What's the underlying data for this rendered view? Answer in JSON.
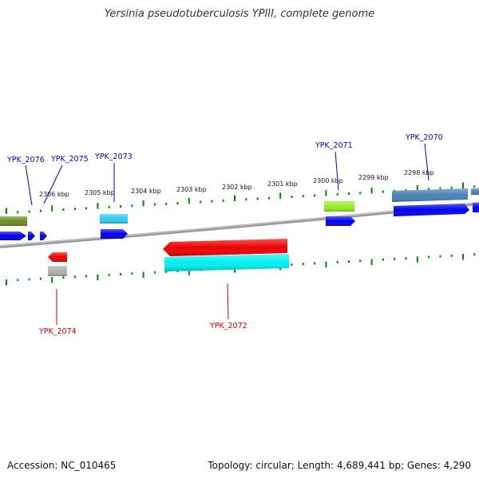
{
  "title": "Yersinia pseudotuberculosis YPIII, complete genome",
  "footer": {
    "accession": "Accession: NC_010465",
    "summary": "Topology: circular; Length: 4,689,441 bp; Genes: 4,290"
  },
  "colors": {
    "forward_label": "#0000cc",
    "reverse_label": "#cc0000",
    "tick": "#008800",
    "backbone": "#808080"
  },
  "ticks": [
    {
      "label": "2306 kbp"
    },
    {
      "label": "2305 kbp"
    },
    {
      "label": "2304 kbp"
    },
    {
      "label": "2303 kbp"
    },
    {
      "label": "2302 kbp"
    },
    {
      "label": "2301 kbp"
    },
    {
      "label": "2300 kbp"
    },
    {
      "label": "2299 kbp"
    },
    {
      "label": "2298 kbp"
    }
  ],
  "gene_labels": [
    {
      "name": "YPK_2076",
      "strand": "forward"
    },
    {
      "name": "YPK_2075",
      "strand": "forward"
    },
    {
      "name": "YPK_2073",
      "strand": "forward"
    },
    {
      "name": "YPK_2071",
      "strand": "forward"
    },
    {
      "name": "YPK_2070",
      "strand": "forward"
    },
    {
      "name": "YPK_2074",
      "strand": "reverse"
    },
    {
      "name": "YPK_2072",
      "strand": "reverse"
    }
  ],
  "features": [
    {
      "kind": "cog",
      "color": "#6b8e23",
      "strand": "forward"
    },
    {
      "kind": "cds",
      "color": "#0000ee",
      "strand": "forward"
    },
    {
      "kind": "cds",
      "color": "#0000ee",
      "strand": "forward"
    },
    {
      "kind": "cds",
      "color": "#0000ee",
      "strand": "forward"
    },
    {
      "kind": "cog",
      "color": "#33ccee",
      "strand": "forward"
    },
    {
      "kind": "cds",
      "color": "#0000ee",
      "strand": "forward"
    },
    {
      "kind": "cog",
      "color": "#99ee22",
      "strand": "forward"
    },
    {
      "kind": "cds",
      "color": "#0000ee",
      "strand": "forward"
    },
    {
      "kind": "cog",
      "color": "#4682b4",
      "strand": "forward"
    },
    {
      "kind": "cds",
      "color": "#0000ee",
      "strand": "forward"
    },
    {
      "kind": "cog",
      "color": "#4682b4",
      "strand": "forward"
    },
    {
      "kind": "cds",
      "color": "#0000ee",
      "strand": "forward"
    },
    {
      "kind": "cds",
      "color": "#ee0000",
      "strand": "reverse"
    },
    {
      "kind": "cog",
      "color": "#b0b0b0",
      "strand": "reverse"
    },
    {
      "kind": "cds",
      "color": "#ee0000",
      "strand": "reverse"
    },
    {
      "kind": "cog",
      "color": "#00eeee",
      "strand": "reverse"
    }
  ]
}
